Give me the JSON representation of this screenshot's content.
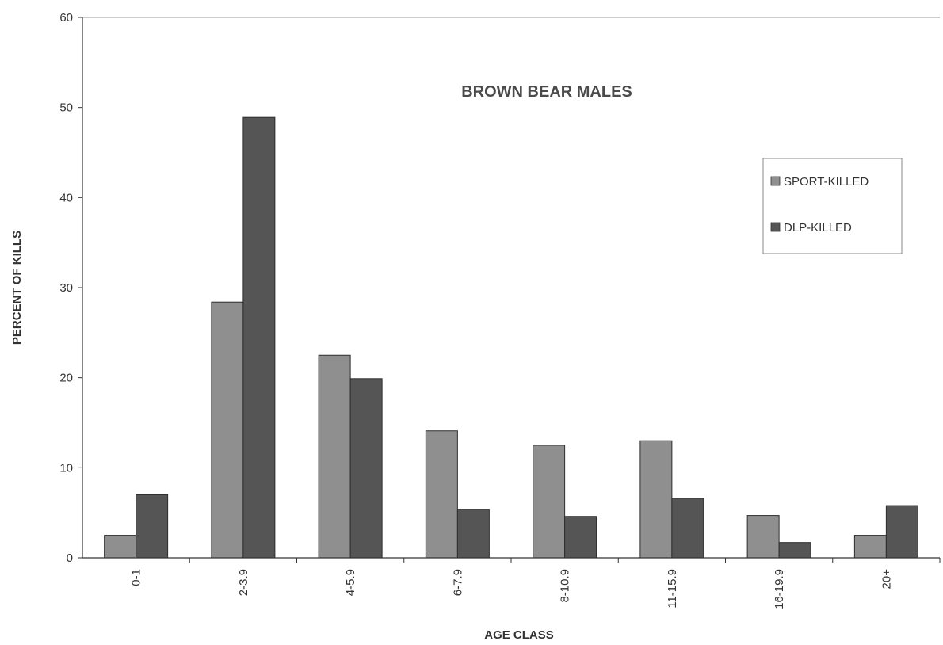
{
  "chart_data": {
    "type": "bar",
    "title": "BROWN BEAR MALES",
    "xlabel": "AGE CLASS",
    "ylabel": "PERCENT OF KILLS",
    "ylim": [
      0,
      60
    ],
    "yticks": [
      0,
      10,
      20,
      30,
      40,
      50,
      60
    ],
    "grid": false,
    "legend_position": "top-right",
    "categories": [
      "0-1",
      "2-3.9",
      "4-5.9",
      "6-7.9",
      "8-10.9",
      "11-15.9",
      "16-19.9",
      "20+"
    ],
    "series": [
      {
        "name": "SPORT-KILLED",
        "color": "#8f8f8f",
        "values": [
          2.5,
          28.4,
          22.5,
          14.1,
          12.5,
          13.0,
          4.7,
          2.5
        ]
      },
      {
        "name": "DLP-KILLED",
        "color": "#555555",
        "values": [
          7.0,
          48.9,
          19.9,
          5.4,
          4.6,
          6.6,
          1.7,
          5.8
        ]
      }
    ]
  }
}
